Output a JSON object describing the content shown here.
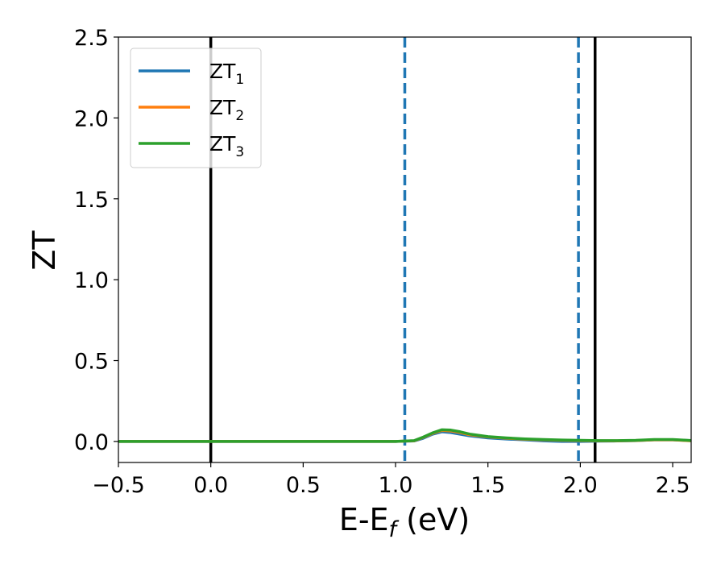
{
  "chart_data": {
    "type": "line",
    "xlabel_main": "E-E",
    "xlabel_sub": "f",
    "xlabel_unit": " (eV)",
    "ylabel": "ZT",
    "xlim": [
      -0.5,
      2.6
    ],
    "ylim": [
      -0.13,
      2.5
    ],
    "xticks": [
      -0.5,
      0.0,
      0.5,
      1.0,
      1.5,
      2.0,
      2.5
    ],
    "xtick_labels": [
      "−0.5",
      "0.0",
      "0.5",
      "1.0",
      "1.5",
      "2.0",
      "2.5"
    ],
    "yticks": [
      0.0,
      0.5,
      1.0,
      1.5,
      2.0,
      2.5
    ],
    "ytick_labels": [
      "0.0",
      "0.5",
      "1.0",
      "1.5",
      "2.0",
      "2.5"
    ],
    "grid": false,
    "legend_position": "top-left",
    "series": [
      {
        "name_main": "ZT",
        "name_sub": "1",
        "color": "#1f77b4",
        "x": [
          -0.5,
          0.0,
          0.5,
          1.0,
          1.1,
          1.15,
          1.2,
          1.25,
          1.3,
          1.35,
          1.4,
          1.5,
          1.6,
          1.7,
          1.8,
          1.9,
          2.0,
          2.1,
          2.2,
          2.3,
          2.4,
          2.5,
          2.6
        ],
        "y": [
          0.0,
          0.0,
          0.0,
          0.0,
          0.003,
          0.02,
          0.045,
          0.06,
          0.055,
          0.045,
          0.035,
          0.022,
          0.015,
          0.01,
          0.004,
          0.0,
          0.0,
          0.002,
          0.003,
          0.005,
          0.01,
          0.01,
          0.005
        ]
      },
      {
        "name_main": "ZT",
        "name_sub": "2",
        "color": "#ff7f0e",
        "x": [
          -0.5,
          0.0,
          0.5,
          1.0,
          1.1,
          1.15,
          1.2,
          1.25,
          1.3,
          1.35,
          1.4,
          1.5,
          1.6,
          1.7,
          1.8,
          1.9,
          2.0,
          2.1,
          2.2,
          2.3,
          2.4,
          2.5,
          2.6
        ],
        "y": [
          0.0,
          0.0,
          0.0,
          0.0,
          0.004,
          0.025,
          0.05,
          0.068,
          0.065,
          0.055,
          0.042,
          0.028,
          0.02,
          0.014,
          0.01,
          0.007,
          0.005,
          0.004,
          0.004,
          0.006,
          0.01,
          0.01,
          0.004
        ]
      },
      {
        "name_main": "ZT",
        "name_sub": "3",
        "color": "#2ca02c",
        "x": [
          -0.5,
          0.0,
          0.5,
          1.0,
          1.1,
          1.15,
          1.2,
          1.25,
          1.3,
          1.35,
          1.4,
          1.5,
          1.6,
          1.7,
          1.8,
          1.9,
          2.0,
          2.1,
          2.2,
          2.3,
          2.4,
          2.5,
          2.6
        ],
        "y": [
          0.0,
          0.0,
          0.0,
          0.0,
          0.005,
          0.027,
          0.053,
          0.072,
          0.07,
          0.06,
          0.046,
          0.03,
          0.022,
          0.016,
          0.012,
          0.009,
          0.007,
          0.005,
          0.005,
          0.007,
          0.012,
          0.012,
          0.006
        ]
      }
    ],
    "vlines": [
      {
        "x": 0.0,
        "style": "solid",
        "color": "#000000"
      },
      {
        "x": 1.05,
        "style": "dashed",
        "color": "#1f77b4"
      },
      {
        "x": 1.99,
        "style": "dashed",
        "color": "#1f77b4"
      },
      {
        "x": 2.08,
        "style": "solid",
        "color": "#000000"
      }
    ]
  }
}
